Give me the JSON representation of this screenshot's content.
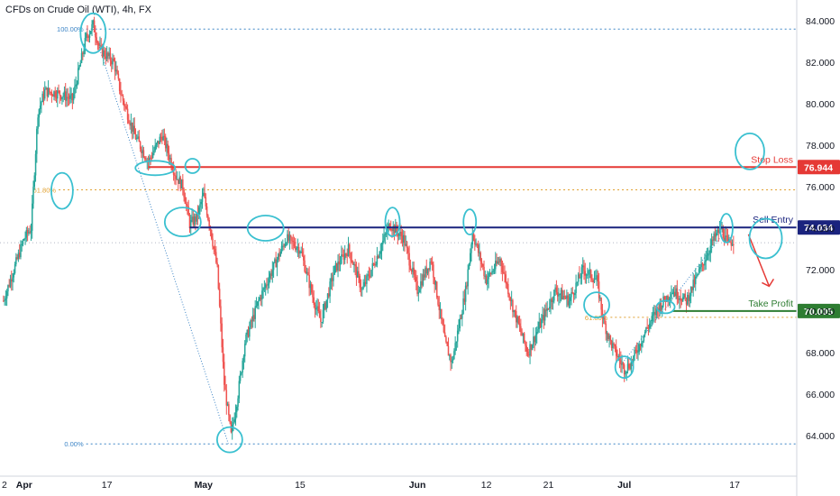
{
  "header": {
    "title": "CFDs on Crude Oil (WTI), 4h, FX"
  },
  "colors": {
    "up": "#26a69a",
    "down": "#ef5350",
    "stop_loss": "#e53935",
    "sell_entry": "#1a237e",
    "take_profit": "#2e7d32",
    "fib": "#e0a030",
    "fib_range": "#3d85c6",
    "annotation": "#3ac0d0",
    "arrow": "#e53935"
  },
  "chart_data": {
    "type": "candlestick",
    "timeframe": "4h",
    "y_axis": {
      "range": [
        62.0,
        85.0
      ],
      "ticks": [
        "84.000",
        "82.000",
        "80.000",
        "78.000",
        "76.000",
        "74.000",
        "72.000",
        "70.000",
        "68.000",
        "66.000",
        "64.000"
      ],
      "position": "right"
    },
    "x_axis": {
      "ticks": [
        {
          "label": "2",
          "day": 2
        },
        {
          "label": "Apr",
          "day": 5
        },
        {
          "label": "17",
          "day": 17
        },
        {
          "label": "May",
          "day": 31
        },
        {
          "label": "15",
          "day": 45
        },
        {
          "label": "Jun",
          "day": 62
        },
        {
          "label": "12",
          "day": 72
        },
        {
          "label": "21",
          "day": 81
        },
        {
          "label": "Jul",
          "day": 92
        },
        {
          "label": "17",
          "day": 108
        }
      ],
      "range_days": [
        1.5,
        117
      ]
    },
    "price_path": [
      [
        2,
        70.5
      ],
      [
        4,
        72.5
      ],
      [
        5,
        73.5
      ],
      [
        6,
        74.0
      ],
      [
        7,
        79.6
      ],
      [
        8,
        80.6
      ],
      [
        10,
        80.5
      ],
      [
        12,
        80.2
      ],
      [
        14,
        83.2
      ],
      [
        15,
        83.8
      ],
      [
        16,
        82.6
      ],
      [
        18,
        82.0
      ],
      [
        19,
        80.5
      ],
      [
        21,
        78.5
      ],
      [
        23,
        77.2
      ],
      [
        25,
        78.5
      ],
      [
        27,
        76.5
      ],
      [
        28,
        76.0
      ],
      [
        29,
        74.2
      ],
      [
        30,
        74.5
      ],
      [
        31,
        75.6
      ],
      [
        32,
        74.0
      ],
      [
        33,
        72.0
      ],
      [
        34,
        66.5
      ],
      [
        35,
        64.0
      ],
      [
        36,
        66.0
      ],
      [
        37,
        68.5
      ],
      [
        39,
        70.5
      ],
      [
        41,
        72.0
      ],
      [
        43,
        73.5
      ],
      [
        45,
        73.0
      ],
      [
        47,
        70.5
      ],
      [
        48,
        69.5
      ],
      [
        50,
        72.0
      ],
      [
        52,
        73.0
      ],
      [
        54,
        71.0
      ],
      [
        56,
        72.5
      ],
      [
        58,
        74.2
      ],
      [
        60,
        73.5
      ],
      [
        62,
        71.0
      ],
      [
        64,
        72.5
      ],
      [
        66,
        68.5
      ],
      [
        67,
        67.5
      ],
      [
        69,
        71.0
      ],
      [
        70,
        73.8
      ],
      [
        72,
        71.5
      ],
      [
        74,
        72.5
      ],
      [
        76,
        70.0
      ],
      [
        78,
        68.0
      ],
      [
        80,
        69.5
      ],
      [
        82,
        71.0
      ],
      [
        84,
        70.5
      ],
      [
        86,
        72.0
      ],
      [
        88,
        71.5
      ],
      [
        89,
        69.5
      ],
      [
        90,
        68.5
      ],
      [
        92,
        67.2
      ],
      [
        93,
        67.5
      ],
      [
        95,
        69.0
      ],
      [
        97,
        70.2
      ],
      [
        99,
        71.0
      ],
      [
        101,
        70.5
      ],
      [
        103,
        72.0
      ],
      [
        105,
        73.5
      ],
      [
        106,
        74.0
      ],
      [
        107,
        73.2
      ],
      [
        108,
        73.5
      ]
    ],
    "annotations": {
      "fib_retracement": [
        {
          "label": "100.00%",
          "price": 83.6,
          "day_start": 14,
          "style": "dotted-blue"
        },
        {
          "label": "61.80%",
          "price": 75.85,
          "day_start": 10,
          "style": "dotted-orange"
        },
        {
          "label": "0.00%",
          "price": 63.6,
          "day_start": 14,
          "style": "dotted-blue"
        }
      ],
      "fib_retracement_2": [
        {
          "label": "61.80%",
          "price": 69.7,
          "day_start": 90,
          "style": "dotted-orange"
        }
      ],
      "levels": [
        {
          "name": "stop-loss",
          "label": "Stop Loss",
          "price_label": "76.944",
          "price": 76.944,
          "day_start": 23
        },
        {
          "name": "sell-entry",
          "label": "Sell Entry",
          "price_label": "74.034",
          "price": 74.034,
          "day_start": 29
        },
        {
          "name": "take-profit",
          "label": "Take Profit",
          "price_label": "70.005",
          "price": 70.005,
          "day_start": 99
        }
      ],
      "dotted_ref_price": 73.3,
      "trend_arrow": {
        "from_day": 110,
        "from_price": 73.7,
        "to_day": 113,
        "to_price": 71.2
      }
    }
  }
}
